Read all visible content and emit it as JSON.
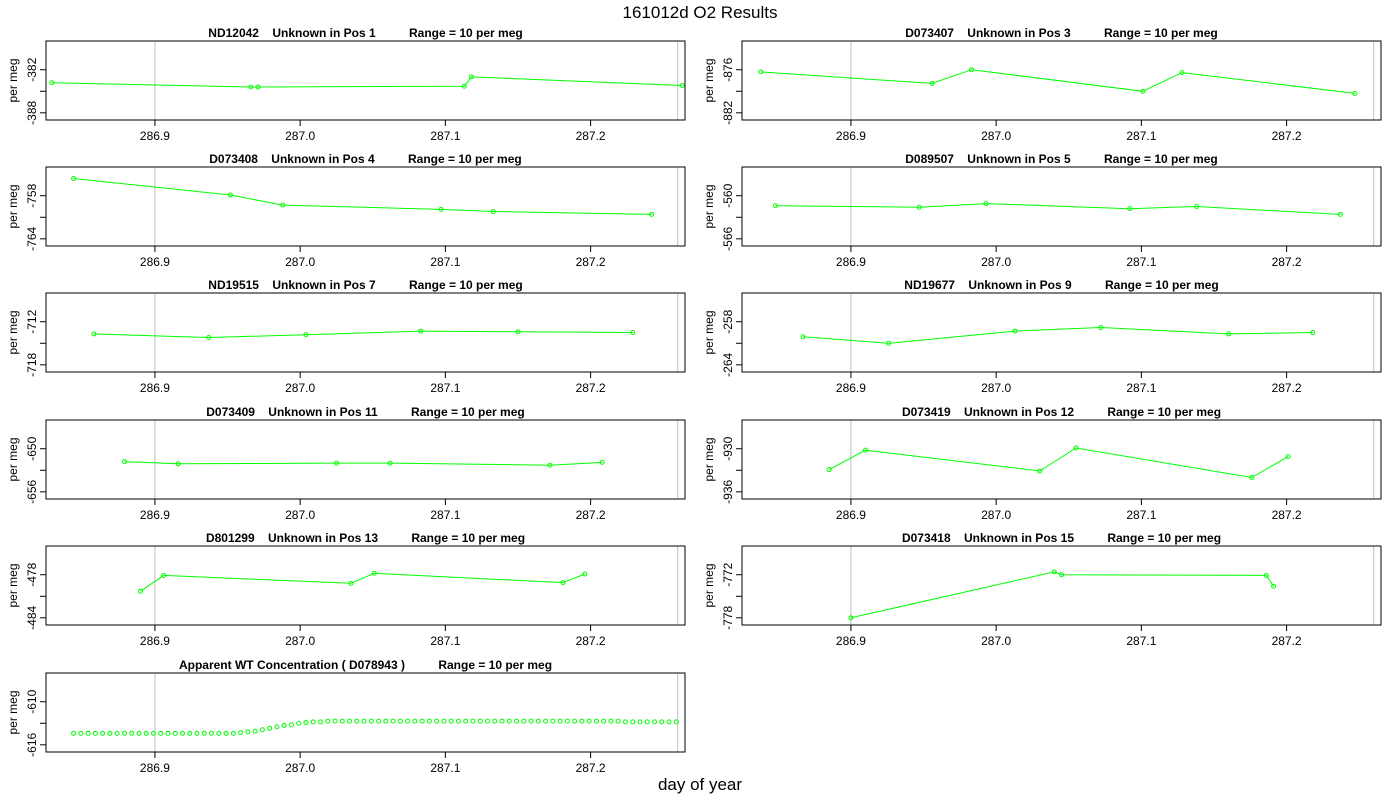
{
  "title": "161012d  O2 Results",
  "xlabel": "day of year",
  "colors": {
    "series": "#00ff00",
    "frame": "#000000",
    "vline": "#bebebe"
  },
  "chart_data": [
    {
      "type": "line",
      "title": "ND12042    Unknown in Pos 1          Range = 10 per meg",
      "ylabel": "per meg",
      "xlim": [
        286.825,
        287.265
      ],
      "ylim": [
        -389,
        -378
      ],
      "yticks": [
        -382,
        -385,
        -388
      ],
      "ytick_labels": [
        "-382",
        "",
        "-388"
      ],
      "xticks": [
        286.9,
        287.0,
        287.1,
        287.2
      ],
      "vlines": [
        286.9,
        287.26
      ],
      "x": [
        286.829,
        286.966,
        286.971,
        287.113,
        287.118,
        287.263
      ],
      "y": [
        -383.8,
        -384.4,
        -384.4,
        -384.3,
        -383.0,
        -384.2
      ]
    },
    {
      "type": "line",
      "title": "D073407    Unknown in Pos 3          Range = 10 per meg",
      "ylabel": "per meg",
      "xlim": [
        286.825,
        287.265
      ],
      "ylim": [
        -883,
        -872
      ],
      "yticks": [
        -876,
        -879,
        -882
      ],
      "ytick_labels": [
        "-876",
        "",
        "-882"
      ],
      "xticks": [
        286.9,
        287.0,
        287.1,
        287.2
      ],
      "vlines": [
        286.9,
        287.26
      ],
      "x": [
        286.838,
        286.956,
        286.983,
        287.101,
        287.128,
        287.247
      ],
      "y": [
        -876.3,
        -877.9,
        -876.0,
        -879.0,
        -876.4,
        -879.3
      ]
    },
    {
      "type": "line",
      "title": "D073408    Unknown in Pos 4          Range = 10 per meg",
      "ylabel": "per meg",
      "xlim": [
        286.825,
        287.265
      ],
      "ylim": [
        -765,
        -754
      ],
      "yticks": [
        -758,
        -761,
        -764
      ],
      "ytick_labels": [
        "-758",
        "",
        "-764"
      ],
      "xticks": [
        286.9,
        287.0,
        287.1,
        287.2
      ],
      "vlines": [
        286.9,
        287.26
      ],
      "x": [
        286.844,
        286.952,
        286.988,
        287.097,
        287.133,
        287.242
      ],
      "y": [
        -755.6,
        -757.9,
        -759.3,
        -759.9,
        -760.2,
        -760.6
      ]
    },
    {
      "type": "line",
      "title": "D089507    Unknown in Pos 5          Range = 10 per meg",
      "ylabel": "per meg",
      "xlim": [
        286.825,
        287.265
      ],
      "ylim": [
        -567,
        -556
      ],
      "yticks": [
        -560,
        -563,
        -566
      ],
      "ytick_labels": [
        "-560",
        "",
        "-566"
      ],
      "xticks": [
        286.9,
        287.0,
        287.1,
        287.2
      ],
      "vlines": [
        286.9,
        287.26
      ],
      "x": [
        286.848,
        286.947,
        286.993,
        287.092,
        287.138,
        287.237
      ],
      "y": [
        -561.4,
        -561.6,
        -561.1,
        -561.8,
        -561.5,
        -562.6
      ]
    },
    {
      "type": "line",
      "title": "ND19515    Unknown in Pos 7          Range = 10 per meg",
      "ylabel": "per meg",
      "xlim": [
        286.825,
        287.265
      ],
      "ylim": [
        -719,
        -708
      ],
      "yticks": [
        -712,
        -715,
        -718
      ],
      "ytick_labels": [
        "-712",
        "",
        "-718"
      ],
      "xticks": [
        286.9,
        287.0,
        287.1,
        287.2
      ],
      "vlines": [
        286.9,
        287.26
      ],
      "x": [
        286.858,
        286.937,
        287.004,
        287.083,
        287.15,
        287.229
      ],
      "y": [
        -713.7,
        -714.2,
        -713.8,
        -713.3,
        -713.4,
        -713.5
      ]
    },
    {
      "type": "line",
      "title": "ND19677    Unknown in Pos 9          Range = 10 per meg",
      "ylabel": "per meg",
      "xlim": [
        286.825,
        287.265
      ],
      "ylim": [
        -265,
        -254
      ],
      "yticks": [
        -258,
        -261,
        -264
      ],
      "ytick_labels": [
        "-258",
        "",
        "-264"
      ],
      "xticks": [
        286.9,
        287.0,
        287.1,
        287.2
      ],
      "vlines": [
        286.9,
        287.26
      ],
      "x": [
        286.867,
        286.926,
        287.013,
        287.072,
        287.16,
        287.218
      ],
      "y": [
        -260.1,
        -261.0,
        -259.3,
        -258.8,
        -259.7,
        -259.5
      ]
    },
    {
      "type": "line",
      "title": "D073409    Unknown in Pos 11          Range = 10 per meg",
      "ylabel": "per meg",
      "xlim": [
        286.825,
        287.265
      ],
      "ylim": [
        -657,
        -646
      ],
      "yticks": [
        -650,
        -653,
        -656
      ],
      "ytick_labels": [
        "-650",
        "",
        "-656"
      ],
      "xticks": [
        286.9,
        287.0,
        287.1,
        287.2
      ],
      "vlines": [
        286.9,
        287.26
      ],
      "x": [
        286.879,
        286.916,
        287.025,
        287.062,
        287.172,
        287.208
      ],
      "y": [
        -651.8,
        -652.1,
        -652.0,
        -652.0,
        -652.3,
        -651.9
      ]
    },
    {
      "type": "line",
      "title": "D073419    Unknown in Pos 12          Range = 10 per meg",
      "ylabel": "per meg",
      "xlim": [
        286.825,
        287.265
      ],
      "ylim": [
        -937,
        -926
      ],
      "yticks": [
        -930,
        -933,
        -936
      ],
      "ytick_labels": [
        "-930",
        "",
        "-936"
      ],
      "xticks": [
        286.9,
        287.0,
        287.1,
        287.2
      ],
      "vlines": [
        286.9,
        287.26
      ],
      "x": [
        286.885,
        286.91,
        287.03,
        287.055,
        287.176,
        287.201
      ],
      "y": [
        -932.9,
        -930.2,
        -933.1,
        -929.9,
        -934.0,
        -931.1
      ]
    },
    {
      "type": "line",
      "title": "D801299    Unknown in Pos 13          Range = 10 per meg",
      "ylabel": "per meg",
      "xlim": [
        286.825,
        287.265
      ],
      "ylim": [
        -485,
        -474
      ],
      "yticks": [
        -478,
        -481,
        -484
      ],
      "ytick_labels": [
        "-478",
        "",
        "-484"
      ],
      "xticks": [
        286.9,
        287.0,
        287.1,
        287.2
      ],
      "vlines": [
        286.9,
        287.26
      ],
      "x": [
        286.89,
        286.906,
        287.035,
        287.051,
        287.181,
        287.196
      ],
      "y": [
        -480.3,
        -478.1,
        -479.2,
        -477.8,
        -479.1,
        -477.9
      ]
    },
    {
      "type": "line",
      "title": "D073418    Unknown in Pos 15          Range = 10 per meg",
      "ylabel": "per meg",
      "xlim": [
        286.825,
        287.265
      ],
      "ylim": [
        -779,
        -768
      ],
      "yticks": [
        -772,
        -775,
        -778
      ],
      "ytick_labels": [
        "-772",
        "",
        "-778"
      ],
      "xticks": [
        286.9,
        287.0,
        287.1,
        287.2
      ],
      "vlines": [
        286.9,
        287.26
      ],
      "x": [
        286.9,
        287.04,
        287.045,
        287.186,
        287.191
      ],
      "y": [
        -778.0,
        -771.6,
        -772.0,
        -772.1,
        -773.6
      ]
    },
    {
      "type": "scatter",
      "title": "Apparent WT Concentration ( D078943 )          Range = 10 per meg",
      "ylabel": "per meg",
      "xlim": [
        286.825,
        287.265
      ],
      "ylim": [
        -617,
        -606
      ],
      "yticks": [
        -610,
        -613,
        -616
      ],
      "ytick_labels": [
        "-610",
        "",
        "-616"
      ],
      "xticks": [
        286.9,
        287.0,
        287.1,
        287.2
      ],
      "vlines": [
        286.9,
        287.26
      ],
      "x": [
        286.844,
        286.849,
        286.854,
        286.859,
        286.864,
        286.869,
        286.874,
        286.879,
        286.884,
        286.889,
        286.894,
        286.899,
        286.904,
        286.909,
        286.914,
        286.919,
        286.924,
        286.929,
        286.934,
        286.939,
        286.944,
        286.949,
        286.954,
        286.959,
        286.964,
        286.969,
        286.974,
        286.979,
        286.984,
        286.989,
        286.994,
        286.999,
        287.004,
        287.009,
        287.014,
        287.019,
        287.024,
        287.029,
        287.034,
        287.039,
        287.044,
        287.049,
        287.054,
        287.059,
        287.064,
        287.069,
        287.074,
        287.079,
        287.084,
        287.089,
        287.094,
        287.099,
        287.104,
        287.109,
        287.114,
        287.119,
        287.124,
        287.129,
        287.134,
        287.139,
        287.144,
        287.149,
        287.154,
        287.159,
        287.164,
        287.169,
        287.174,
        287.179,
        287.184,
        287.189,
        287.194,
        287.199,
        287.204,
        287.209,
        287.214,
        287.219,
        287.224,
        287.229,
        287.234,
        287.239,
        287.244,
        287.249,
        287.254,
        287.259
      ],
      "y": [
        -614.4,
        -614.4,
        -614.4,
        -614.4,
        -614.4,
        -614.4,
        -614.4,
        -614.4,
        -614.4,
        -614.4,
        -614.4,
        -614.4,
        -614.4,
        -614.4,
        -614.4,
        -614.4,
        -614.4,
        -614.4,
        -614.4,
        -614.4,
        -614.4,
        -614.4,
        -614.4,
        -614.3,
        -614.2,
        -614.1,
        -613.9,
        -613.7,
        -613.5,
        -613.3,
        -613.2,
        -613.0,
        -612.9,
        -612.8,
        -612.8,
        -612.7,
        -612.7,
        -612.7,
        -612.7,
        -612.7,
        -612.7,
        -612.7,
        -612.7,
        -612.7,
        -612.7,
        -612.7,
        -612.7,
        -612.7,
        -612.7,
        -612.7,
        -612.7,
        -612.7,
        -612.7,
        -612.7,
        -612.7,
        -612.7,
        -612.7,
        -612.7,
        -612.7,
        -612.7,
        -612.7,
        -612.7,
        -612.7,
        -612.7,
        -612.7,
        -612.7,
        -612.7,
        -612.7,
        -612.7,
        -612.7,
        -612.7,
        -612.7,
        -612.7,
        -612.7,
        -612.7,
        -612.7,
        -612.8,
        -612.8,
        -612.8,
        -612.8,
        -612.8,
        -612.8,
        -612.8,
        -612.8
      ]
    }
  ]
}
